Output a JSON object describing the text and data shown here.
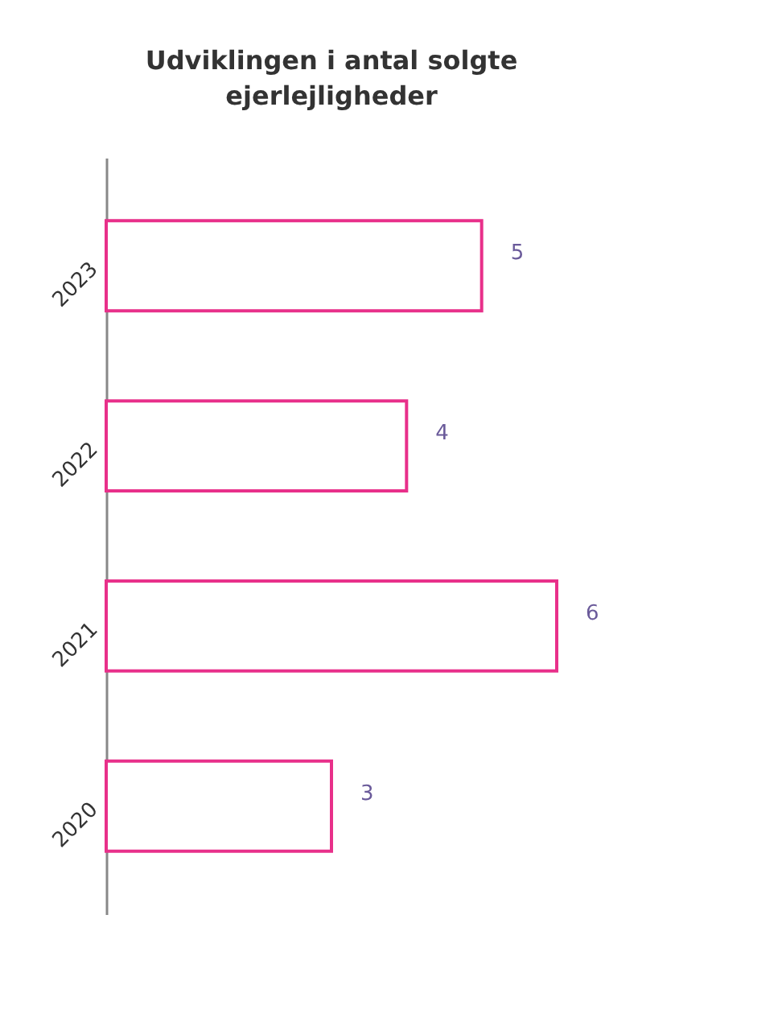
{
  "chart_data": {
    "type": "bar",
    "orientation": "horizontal",
    "title": "Udviklingen i antal solgte ejerlejligheder",
    "categories": [
      "2023",
      "2022",
      "2021",
      "2020"
    ],
    "values": [
      5,
      4,
      6,
      3
    ],
    "color": "#e8308a",
    "data_labels": true,
    "tick_labels": "y"
  }
}
